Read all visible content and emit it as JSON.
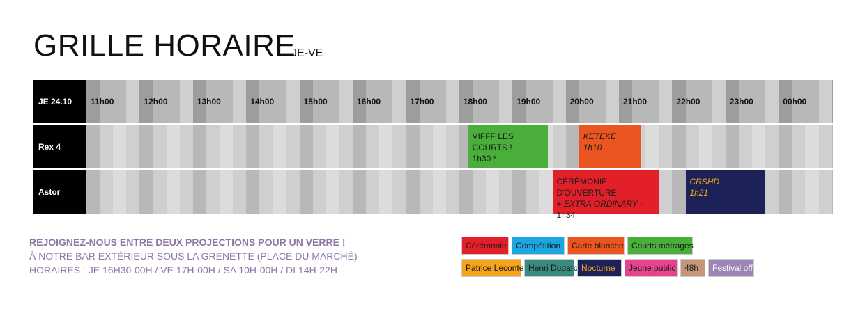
{
  "header": {
    "title": "GRILLE HORAIRE",
    "subtitle": "JE-VE"
  },
  "grid": {
    "date_label": "JE 24.10",
    "hours": [
      "11h00",
      "12h00",
      "13h00",
      "14h00",
      "15h00",
      "16h00",
      "17h00",
      "18h00",
      "19h00",
      "20h00",
      "21h00",
      "22h00",
      "23h00",
      "00h00"
    ],
    "rows": [
      {
        "name": "Rex 4",
        "events": [
          {
            "line1": "VIFFF LES COURTS !",
            "line2": "1h30 *",
            "italic": false,
            "category": "courts",
            "start": "18h10",
            "end": "19h40"
          },
          {
            "line1": "KETEKE",
            "line2": "1h10",
            "italic": true,
            "category": "carte_blanche",
            "start": "20h15",
            "end": "21h25"
          }
        ]
      },
      {
        "name": "Astor",
        "events": [
          {
            "line1": "CÉRÉMONIE D'OUVERTURE",
            "line2a": "+ ",
            "line2b": "EXTRA ORDINARY",
            "line2c": " - 1h34",
            "italic": false,
            "category": "ceremonie",
            "start": "19h45",
            "end": "21h45"
          },
          {
            "line1": "CRSHD",
            "line2": "1h21",
            "italic": true,
            "category": "nocturne",
            "start": "22h15",
            "end": "23h45"
          }
        ]
      }
    ]
  },
  "info": {
    "headline": "REJOIGNEZ-NOUS ENTRE DEUX PROJECTIONS POUR UN VERRE !",
    "line1": "À NOTRE BAR EXTÉRIEUR SOUS LA GRENETTE (PLACE DU MARCHÉ)",
    "line2": "HORAIRES : JE 16H30-00H / VE 17H-00H / SA 10H-00H / DI 14H-22H"
  },
  "legend": [
    {
      "key": "ceremonie",
      "label": "Cérémonie",
      "bg": "#e3202a",
      "fg": "#1a1a1a"
    },
    {
      "key": "competition",
      "label": "Compétition",
      "bg": "#1ba7df",
      "fg": "#1a1a1a"
    },
    {
      "key": "carte_blanche",
      "label": "Carte blanche",
      "bg": "#ea5520",
      "fg": "#1a1a1a"
    },
    {
      "key": "courts",
      "label": "Courts métrages",
      "bg": "#4aae3a",
      "fg": "#1a1a1a"
    },
    {
      "key": "leconte",
      "label": "Patrice Leconte",
      "bg": "#f5a31b",
      "fg": "#1a1a1a"
    },
    {
      "key": "duparc",
      "label": "Henri Duparc",
      "bg": "#3a8b7d",
      "fg": "#1a1a1a"
    },
    {
      "key": "nocturne",
      "label": "Nocturne",
      "bg": "#1c2257",
      "fg": "#f5a31b"
    },
    {
      "key": "jeune",
      "label": "Jeune public",
      "bg": "#e5448c",
      "fg": "#1a1a1a"
    },
    {
      "key": "48h",
      "label": "48h",
      "bg": "#c4977a",
      "fg": "#1a1a1a"
    },
    {
      "key": "off",
      "label": "Festival off",
      "bg": "#9b84b4",
      "fg": "#ffffff"
    }
  ],
  "colors": {
    "stripe_dark": "#9d9d9d",
    "stripe_mid": "#b8b8b8",
    "stripe_light": "#cfcfcf",
    "stripe_lighter": "#dcdcdc"
  }
}
